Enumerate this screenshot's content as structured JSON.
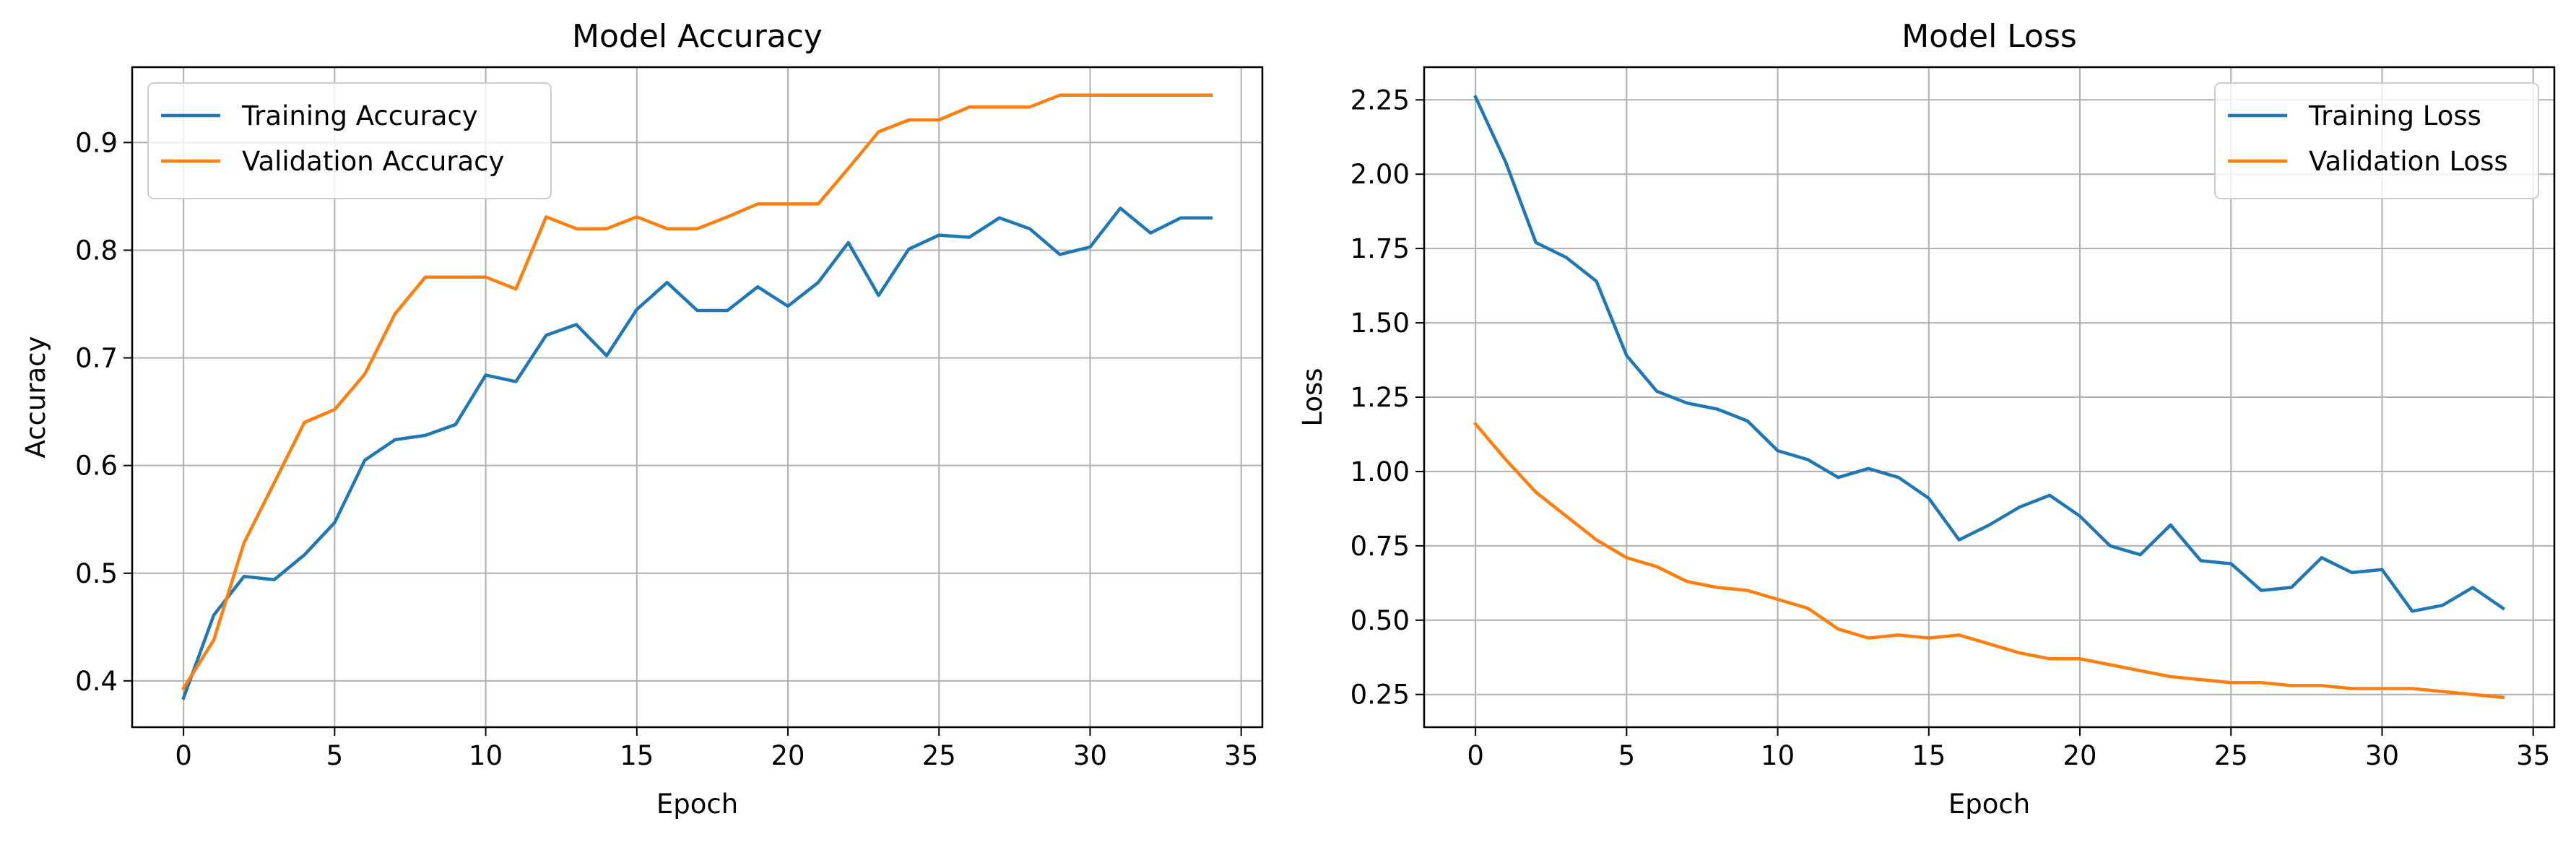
{
  "chart_data": [
    {
      "type": "line",
      "title": "Model Accuracy",
      "xlabel": "Epoch",
      "ylabel": "Accuracy",
      "xlim": [
        -1.7,
        35.7
      ],
      "ylim": [
        0.357,
        0.97
      ],
      "xticks": [
        0,
        5,
        10,
        15,
        20,
        25,
        30,
        35
      ],
      "xtick_labels": [
        "0",
        "5",
        "10",
        "15",
        "20",
        "25",
        "30",
        "35"
      ],
      "yticks": [
        0.4,
        0.5,
        0.6,
        0.7,
        0.8,
        0.9
      ],
      "ytick_labels": [
        "0.4",
        "0.5",
        "0.6",
        "0.7",
        "0.8",
        "0.9"
      ],
      "grid": true,
      "legend_position": "upper-left",
      "x": [
        0,
        1,
        2,
        3,
        4,
        5,
        6,
        7,
        8,
        9,
        10,
        11,
        12,
        13,
        14,
        15,
        16,
        17,
        18,
        19,
        20,
        21,
        22,
        23,
        24,
        25,
        26,
        27,
        28,
        29,
        30,
        31,
        32,
        33,
        34
      ],
      "series": [
        {
          "name": "Training Accuracy",
          "color": "#1f77b4",
          "values": [
            0.384,
            0.461,
            0.497,
            0.494,
            0.517,
            0.547,
            0.605,
            0.624,
            0.628,
            0.638,
            0.684,
            0.678,
            0.721,
            0.731,
            0.702,
            0.745,
            0.77,
            0.744,
            0.744,
            0.766,
            0.748,
            0.77,
            0.807,
            0.758,
            0.801,
            0.814,
            0.812,
            0.83,
            0.82,
            0.796,
            0.803,
            0.839,
            0.816,
            0.83,
            0.83
          ]
        },
        {
          "name": "Validation Accuracy",
          "color": "#ff7f0e",
          "values": [
            0.393,
            0.438,
            0.528,
            0.584,
            0.64,
            0.652,
            0.685,
            0.741,
            0.775,
            0.775,
            0.775,
            0.764,
            0.831,
            0.82,
            0.82,
            0.831,
            0.82,
            0.82,
            0.831,
            0.843,
            0.843,
            0.843,
            0.876,
            0.91,
            0.921,
            0.921,
            0.933,
            0.933,
            0.933,
            0.944,
            0.944,
            0.944,
            0.944,
            0.944,
            0.944
          ]
        }
      ]
    },
    {
      "type": "line",
      "title": "Model Loss",
      "xlabel": "Epoch",
      "ylabel": "Loss",
      "xlim": [
        -1.7,
        35.7
      ],
      "ylim": [
        0.14,
        2.36
      ],
      "xticks": [
        0,
        5,
        10,
        15,
        20,
        25,
        30,
        35
      ],
      "xtick_labels": [
        "0",
        "5",
        "10",
        "15",
        "20",
        "25",
        "30",
        "35"
      ],
      "yticks": [
        0.25,
        0.5,
        0.75,
        1.0,
        1.25,
        1.5,
        1.75,
        2.0,
        2.25
      ],
      "ytick_labels": [
        "0.25",
        "0.50",
        "0.75",
        "1.00",
        "1.25",
        "1.50",
        "1.75",
        "2.00",
        "2.25"
      ],
      "grid": true,
      "legend_position": "upper-right",
      "x": [
        0,
        1,
        2,
        3,
        4,
        5,
        6,
        7,
        8,
        9,
        10,
        11,
        12,
        13,
        14,
        15,
        16,
        17,
        18,
        19,
        20,
        21,
        22,
        23,
        24,
        25,
        26,
        27,
        28,
        29,
        30,
        31,
        32,
        33,
        34
      ],
      "series": [
        {
          "name": "Training Loss",
          "color": "#1f77b4",
          "values": [
            2.26,
            2.04,
            1.77,
            1.72,
            1.64,
            1.39,
            1.27,
            1.23,
            1.21,
            1.17,
            1.07,
            1.04,
            0.98,
            1.01,
            0.98,
            0.91,
            0.77,
            0.82,
            0.88,
            0.92,
            0.85,
            0.75,
            0.72,
            0.82,
            0.7,
            0.69,
            0.6,
            0.61,
            0.71,
            0.66,
            0.67,
            0.53,
            0.55,
            0.61,
            0.54
          ]
        },
        {
          "name": "Validation Loss",
          "color": "#ff7f0e",
          "values": [
            1.16,
            1.04,
            0.93,
            0.85,
            0.77,
            0.71,
            0.68,
            0.63,
            0.61,
            0.6,
            0.57,
            0.54,
            0.47,
            0.44,
            0.45,
            0.44,
            0.45,
            0.42,
            0.39,
            0.37,
            0.37,
            0.35,
            0.33,
            0.31,
            0.3,
            0.29,
            0.29,
            0.28,
            0.28,
            0.27,
            0.27,
            0.27,
            0.26,
            0.25,
            0.24
          ]
        }
      ]
    }
  ]
}
